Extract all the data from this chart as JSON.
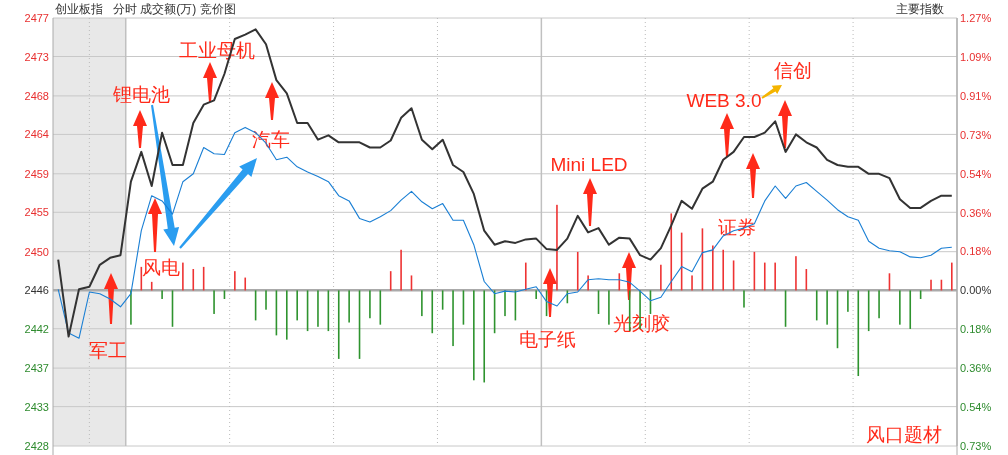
{
  "chart_data": {
    "type": "line",
    "title": "创业板指",
    "subtitle": "分时 成交额(万) 竞价图",
    "categories": [
      null,
      null,
      null,
      null,
      null,
      null,
      null,
      null,
      null,
      null,
      null,
      null,
      null,
      null,
      null,
      null,
      null,
      null,
      null,
      null,
      null,
      null,
      null,
      null,
      null,
      null,
      null,
      null,
      null,
      null,
      null,
      null,
      null,
      null,
      null,
      null,
      null,
      null,
      null,
      null,
      null,
      null,
      null,
      null,
      null,
      null,
      null,
      null,
      null,
      null,
      null,
      null,
      null,
      null,
      null,
      null,
      null,
      null,
      null,
      null,
      null,
      null,
      null,
      null,
      null,
      null,
      null,
      null,
      null,
      null,
      null,
      null,
      null,
      null,
      null,
      null,
      null,
      null,
      null,
      null,
      null,
      null,
      null,
      null,
      null,
      null,
      null
    ],
    "series": [
      {
        "type": "bar",
        "axis": "y2",
        "color": "#ee3333",
        "values": [
          null,
          null,
          null,
          null,
          null,
          null,
          null,
          null,
          0.11,
          0.04,
          null,
          null,
          0.13,
          0.1,
          0.11,
          null,
          null,
          0.09,
          0.06,
          null,
          null,
          null,
          null,
          null,
          null,
          null,
          null,
          null,
          null,
          null,
          null,
          null,
          0.09,
          0.19,
          0.07,
          null,
          null,
          null,
          null,
          null,
          null,
          null,
          null,
          null,
          null,
          0.13,
          null,
          null,
          0.4,
          null,
          0.18,
          0.07,
          null,
          null,
          0.08,
          null,
          null,
          null,
          0.12,
          0.36,
          0.27,
          0.07,
          0.29,
          0.21,
          0.19,
          0.14,
          null,
          0.18,
          0.13,
          0.13,
          null,
          0.16,
          0.1,
          null,
          null,
          null,
          null,
          null,
          null,
          null,
          0.08,
          null,
          null,
          null,
          0.05,
          0.05,
          0.13
        ]
      },
      {
        "type": "bar",
        "axis": "y2",
        "color": "#2e932e",
        "values": [
          null,
          null,
          null,
          null,
          null,
          null,
          null,
          -0.16,
          null,
          null,
          -0.04,
          -0.17,
          null,
          null,
          null,
          -0.11,
          -0.04,
          null,
          null,
          -0.14,
          -0.09,
          -0.21,
          -0.23,
          -0.14,
          -0.19,
          -0.17,
          -0.19,
          -0.32,
          -0.15,
          -0.32,
          -0.13,
          -0.16,
          null,
          null,
          null,
          -0.12,
          -0.2,
          -0.09,
          -0.26,
          -0.16,
          -0.42,
          -0.43,
          -0.2,
          -0.12,
          -0.14,
          null,
          -0.04,
          -0.12,
          null,
          -0.06,
          null,
          null,
          -0.11,
          -0.16,
          null,
          -0.19,
          -0.18,
          -0.11,
          null,
          null,
          null,
          null,
          null,
          null,
          null,
          null,
          -0.08,
          null,
          null,
          null,
          -0.17,
          null,
          null,
          -0.14,
          -0.16,
          -0.27,
          -0.1,
          -0.4,
          -0.19,
          -0.13,
          null,
          -0.16,
          -0.18,
          -0.04,
          null,
          null,
          null
        ]
      },
      {
        "color": "#1a7fd4",
        "values": [
          2446.1,
          2441.1,
          2440.5,
          2445.8,
          2445.6,
          2445.0,
          2444.1,
          2445.6,
          2452.8,
          2456.8,
          2456.2,
          2454.7,
          2458.4,
          2459.3,
          2462.3,
          2461.6,
          2461.5,
          2464.0,
          2464.6,
          2464.0,
          2462.8,
          2460.9,
          2461.2,
          2460.1,
          2459.5,
          2459.0,
          2458.4,
          2456.8,
          2456.2,
          2454.2,
          2453.8,
          2454.4,
          2455.1,
          2456.3,
          2457.3,
          2456.1,
          2455.3,
          2455.9,
          2454.0,
          2454.0,
          2451.2,
          2447.0,
          2445.6,
          2445.9,
          2445.8,
          2446.1,
          2446.4,
          2444.7,
          2444.2,
          2445.6,
          2445.8,
          2447.2,
          2447.3,
          2447.2,
          2447.2,
          2446.9,
          2445.9,
          2444.8,
          2445.2,
          2447.0,
          2448.7,
          2448.1,
          2450.3,
          2450.6,
          2452.2,
          2452.8,
          2453.1,
          2453.6,
          2456.2,
          2457.9,
          2456.5,
          2457.9,
          2458.3,
          2457.3,
          2456.3,
          2455.2,
          2454.4,
          2454.0,
          2451.6,
          2450.8,
          2450.5,
          2450.4,
          2449.8,
          2449.7,
          2450.0,
          2450.8,
          2450.9
        ]
      },
      {
        "color": "#333333",
        "values": [
          2449.5,
          2440.7,
          2446.1,
          2446.4,
          2448.9,
          2449.7,
          2450.0,
          2458.4,
          2461.8,
          2457.9,
          2464.0,
          2460.3,
          2460.3,
          2465.1,
          2467.2,
          2467.7,
          2470.7,
          2474.7,
          2475.2,
          2475.8,
          2474.1,
          2470.0,
          2468.5,
          2465.1,
          2465.1,
          2463.2,
          2463.7,
          2462.9,
          2462.9,
          2462.9,
          2462.3,
          2462.3,
          2463.1,
          2465.7,
          2466.8,
          2463.2,
          2462.1,
          2463.2,
          2460.3,
          2459.5,
          2457.0,
          2452.8,
          2451.2,
          2451.6,
          2451.4,
          2451.8,
          2451.9,
          2450.7,
          2450.6,
          2451.9,
          2454.5,
          2452.6,
          2453.1,
          2451.2,
          2452.0,
          2451.9,
          2450.0,
          2449.5,
          2450.8,
          2453.4,
          2456.2,
          2455.3,
          2457.6,
          2458.4,
          2460.9,
          2461.8,
          2463.5,
          2463.5,
          2464.0,
          2465.3,
          2461.8,
          2463.8,
          2462.9,
          2462.3,
          2460.9,
          2460.3,
          2460.1,
          2460.1,
          2459.3,
          2459.3,
          2458.8,
          2456.4,
          2455.4,
          2455.4,
          2456.2,
          2456.8,
          2456.8
        ]
      }
    ],
    "ylim": [
      2428.2,
      2477.1
    ],
    "yticks": [
      {
        "value": 2477.1,
        "label": "2477"
      },
      {
        "value": 2472.7,
        "label": "2473"
      },
      {
        "value": 2468.2,
        "label": "2468"
      },
      {
        "value": 2463.8,
        "label": "2464"
      },
      {
        "value": 2459.3,
        "label": "2459"
      },
      {
        "value": 2454.9,
        "label": "2455"
      },
      {
        "value": 2450.4,
        "label": "2450"
      },
      {
        "value": 2446,
        "label": "2446"
      },
      {
        "value": 2441.6,
        "label": "2442"
      },
      {
        "value": 2437.1,
        "label": "2437"
      },
      {
        "value": 2432.7,
        "label": "2433"
      },
      {
        "value": 2428.2,
        "label": "2428"
      }
    ],
    "y2lim": [
      -0.727,
      1.273
    ],
    "y2ticks": [
      {
        "value": 1.273,
        "label": "1.27%"
      },
      {
        "value": 1.091,
        "label": "1.09%"
      },
      {
        "value": 0.909,
        "label": "0.91%"
      },
      {
        "value": 0.727,
        "label": "0.73%"
      },
      {
        "value": 0.545,
        "label": "0.54%"
      },
      {
        "value": 0.364,
        "label": "0.36%"
      },
      {
        "value": 0.182,
        "label": "0.18%"
      },
      {
        "value": 0,
        "label": "0.00%"
      },
      {
        "value": -0.182,
        "label": "0.18%"
      },
      {
        "value": -0.364,
        "label": "0.36%"
      },
      {
        "value": -0.545,
        "label": "0.54%"
      },
      {
        "value": -0.727,
        "label": "0.73%"
      }
    ],
    "ref_lines": [
      {
        "axis": "y",
        "value": 2446,
        "color": "#aaaaaa"
      }
    ],
    "grid": true,
    "annotations": [
      "锂电池",
      "风电",
      "工业母机",
      "汽车",
      "军工",
      "电子纸",
      "Mini LED",
      "光刻胶",
      "WEB 3.0",
      "信创",
      "证券",
      "风口题材",
      "主要指数"
    ]
  }
}
